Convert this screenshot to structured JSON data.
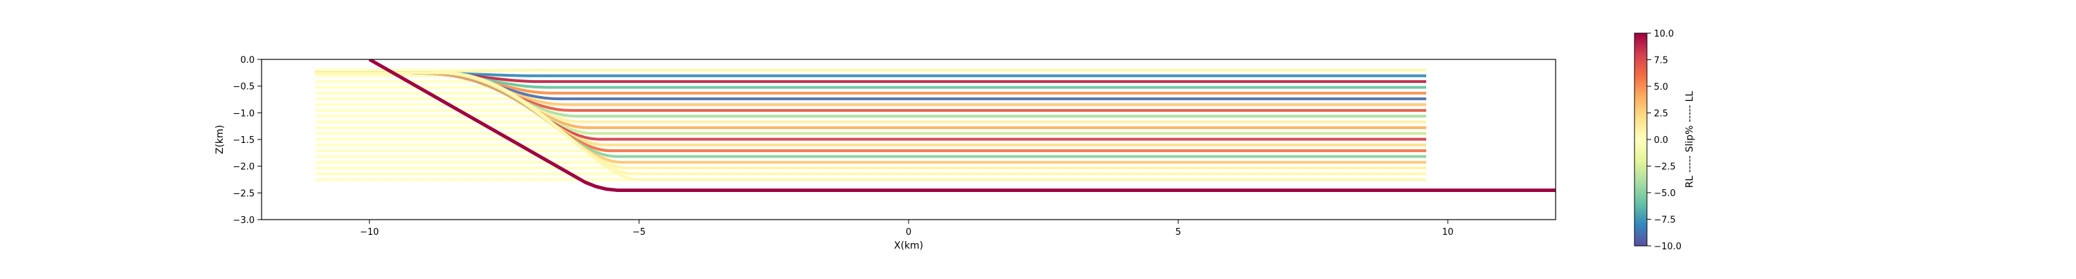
{
  "chart_data": {
    "type": "line",
    "title": "",
    "xlabel": "X(km)",
    "ylabel": "Z(km)",
    "xlim": [
      -12,
      12
    ],
    "ylim": [
      -3.0,
      0.0
    ],
    "xticks": [
      -10,
      -5,
      0,
      5,
      10
    ],
    "xtick_labels": [
      "−10",
      "−5",
      "0",
      "5",
      "10"
    ],
    "yticks": [
      0.0,
      -0.5,
      -1.0,
      -1.5,
      -2.0,
      -2.5,
      -3.0
    ],
    "ytick_labels": [
      "0.0",
      "−0.5",
      "−1.0",
      "−1.5",
      "−2.0",
      "−2.5",
      "−3.0"
    ],
    "grid": false,
    "colorbar": {
      "label": "RL ----- Slip% ----- LL",
      "range": [
        -10,
        10
      ],
      "ticks": [
        10,
        7.5,
        5,
        2.5,
        0,
        -2.5,
        -5,
        -7.5,
        -10
      ],
      "tick_labels": [
        "10.0",
        "7.5",
        "5.0",
        "2.5",
        "0.0",
        "−2.5",
        "−5.0",
        "−7.5",
        "−10.0"
      ],
      "colormap": "Spectral",
      "colormap_stops": [
        "#5e4fa2",
        "#3288bd",
        "#66c2a5",
        "#abdda4",
        "#e6f598",
        "#ffffbf",
        "#fee08b",
        "#fdae61",
        "#f46d43",
        "#d53e4f",
        "#9e0142"
      ]
    },
    "fault": {
      "color": "#9e0142",
      "x": [
        -10.0,
        -6.0,
        -5.8,
        -5.6,
        -5.4,
        -5.2,
        12.0
      ],
      "y": [
        0.0,
        -2.3,
        -2.38,
        -2.43,
        -2.45,
        -2.45,
        -2.45
      ]
    },
    "layers": {
      "count": 20,
      "top_z": -0.2,
      "bottom_z": -2.25,
      "x_left": -11.0,
      "x_right": 9.6,
      "bend_start_z": -0.25,
      "bend_x_top": -7.0,
      "bend_x_bottom": -5.0,
      "slip_pct": [
        0.6,
        -8,
        9,
        -6,
        5,
        -9,
        3,
        7,
        -4,
        1,
        4,
        -3,
        8,
        2,
        6,
        -5,
        3,
        0.8,
        0.6,
        0.5
      ]
    }
  }
}
